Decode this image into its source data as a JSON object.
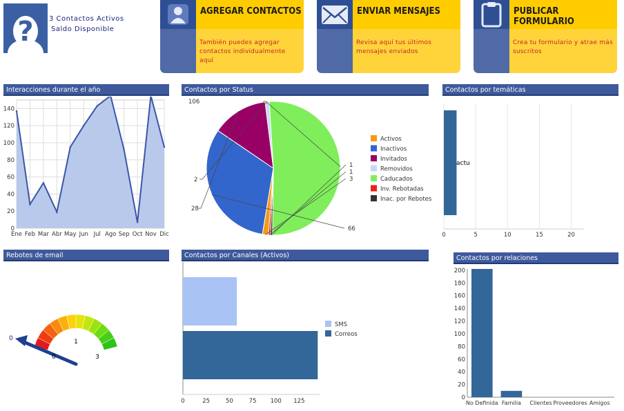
{
  "header": {
    "contactos_activos": "3 Contactos Activos",
    "saldo": "Saldo Disponible"
  },
  "cards": [
    {
      "title": "AGREGAR CONTACTOS",
      "icon": "user-icon",
      "desc": "También puedes agregar contactos individualmente aquí"
    },
    {
      "title": "ENVIAR MENSAJES",
      "icon": "envelope-icon",
      "desc": "Revisa aquí tus últimos mensajes enviados"
    },
    {
      "title": "PUBLICAR FORMULARIO",
      "icon": "clipboard-icon",
      "desc": "Crea tu formulario y atrae más suscritos"
    }
  ],
  "panels": {
    "interacciones": "Interacciones durante el año",
    "status": "Contactos por Status",
    "tematicas": "Contactos por temáticas",
    "rebotes": "Rebotes de email",
    "canales": "Contactos por Canales (Activos)",
    "relaciones": "Contactos por relaciones"
  },
  "chart_data": [
    {
      "type": "area",
      "title": "Interacciones durante el año",
      "categories": [
        "Ene",
        "Feb",
        "Mar",
        "Abr",
        "May",
        "Jun",
        "Jul",
        "Ago",
        "Sep",
        "Oct",
        "Nov",
        "Dic"
      ],
      "values": [
        137,
        28,
        53,
        19,
        95,
        120,
        143,
        155,
        92,
        7,
        155,
        95
      ],
      "ylim": [
        0,
        150
      ],
      "yticks": [
        0,
        20,
        40,
        60,
        80,
        100,
        120,
        140
      ],
      "color": "#3b55a6",
      "fill": "#b8c9ec"
    },
    {
      "type": "pie",
      "title": "Contactos por Status",
      "series": [
        {
          "name": "Activos",
          "value": 3,
          "color": "#f39c12"
        },
        {
          "name": "Inactivos",
          "value": 66,
          "color": "#3366cc"
        },
        {
          "name": "Invitados",
          "value": 28,
          "color": "#990066"
        },
        {
          "name": "Removidos",
          "value": 2,
          "color": "#c5d9f7"
        },
        {
          "name": "Caducados",
          "value": 106,
          "color": "#7fee5a"
        },
        {
          "name": "Inv. Rebotadas",
          "value": 1,
          "color": "#e8221b"
        },
        {
          "name": "Inac. por Rebotes",
          "value": 1,
          "color": "#333333"
        }
      ],
      "slice_labels": [
        "106",
        "1",
        "1",
        "3",
        "66",
        "28",
        "2"
      ]
    },
    {
      "type": "bar",
      "title": "Contactos por temáticas",
      "categories": [
        "actu"
      ],
      "values": [
        2
      ],
      "xticks": [
        0,
        5,
        10,
        15,
        20
      ],
      "xlim": [
        0,
        22
      ],
      "color": "#336699"
    },
    {
      "type": "gauge",
      "title": "Rebotes de email",
      "value": 0,
      "min_label": "0",
      "labels": [
        "1",
        "0",
        "3"
      ]
    },
    {
      "type": "bar",
      "title": "Contactos por Canales (Activos)",
      "series": [
        {
          "name": "SMS",
          "value": 58,
          "color": "#a9c3f5"
        },
        {
          "name": "Correos",
          "value": 145,
          "color": "#336699"
        }
      ],
      "xticks": [
        0,
        25,
        50,
        75,
        100,
        125
      ],
      "xlim": [
        0,
        147
      ]
    },
    {
      "type": "bar",
      "title": "Contactos por relaciones",
      "categories": [
        "No Definida",
        "Familia",
        "Clientes",
        "Proveedores",
        "Amigos"
      ],
      "values": [
        202,
        10,
        0,
        0,
        0
      ],
      "ylim": [
        0,
        202
      ],
      "yticks": [
        0,
        20,
        40,
        60,
        80,
        100,
        120,
        140,
        160,
        180,
        200
      ],
      "color": "#336699"
    }
  ]
}
